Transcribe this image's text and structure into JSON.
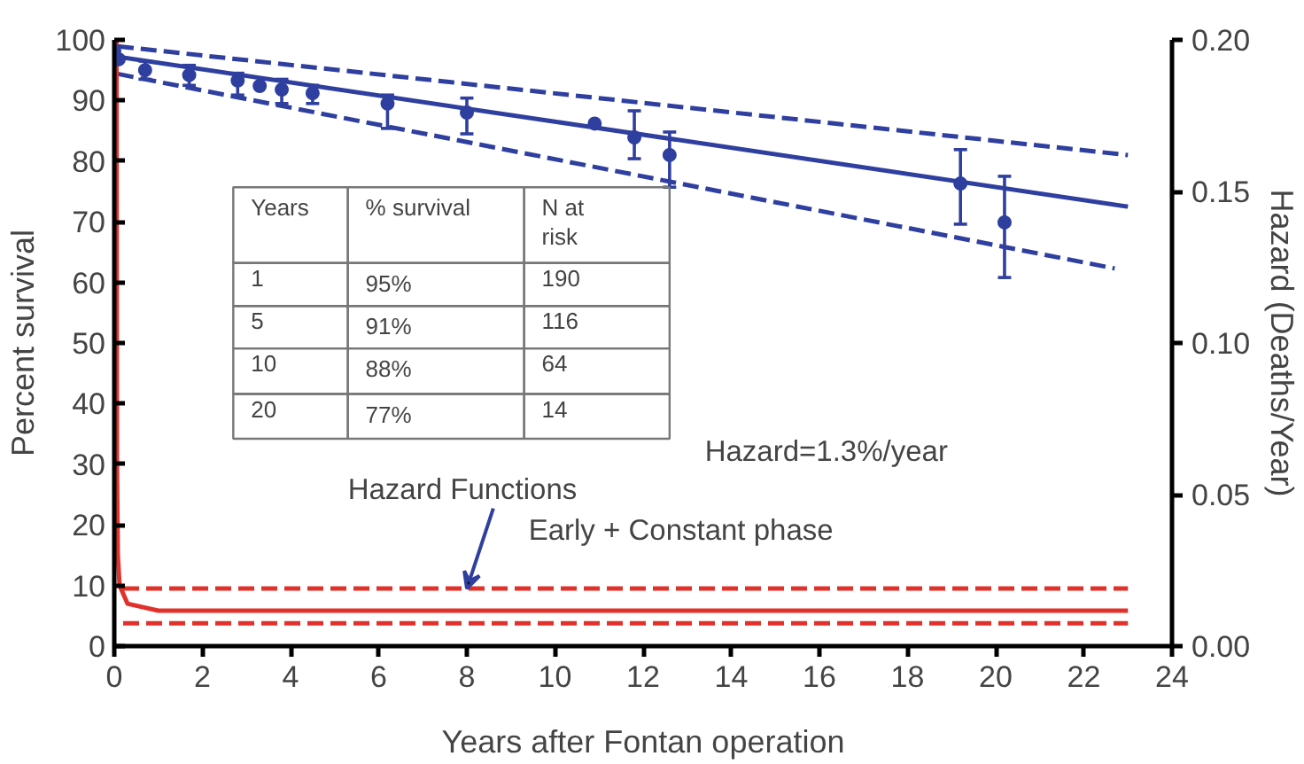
{
  "chart_data": {
    "type": "scatter",
    "xlabel": "Years after Fontan operation",
    "ylabel": "Percent survival",
    "y2label": "Hazard (Deaths/Year)",
    "xlim": [
      0,
      24
    ],
    "xticks": [
      0,
      2,
      4,
      6,
      8,
      10,
      12,
      14,
      16,
      18,
      20,
      22,
      24
    ],
    "ylim": [
      0,
      100
    ],
    "yticks": [
      0,
      10,
      20,
      30,
      40,
      50,
      60,
      70,
      80,
      90,
      100
    ],
    "y2lim": [
      0,
      0.2
    ],
    "y2ticks": [
      {
        "value": 0,
        "label": "0.00"
      },
      {
        "value": 0.05,
        "label": "0.05"
      },
      {
        "value": 0.1,
        "label": "0.10"
      },
      {
        "value": 0.15,
        "label": "0.15"
      },
      {
        "value": 0.2,
        "label": "0.20"
      }
    ],
    "grid": false,
    "series": [
      {
        "color": "#2f3f9f",
        "marker": "circle",
        "x": [
          0,
          0.1,
          0.7,
          1.7,
          2.8,
          3.3,
          3.8,
          4.5,
          6.2,
          8.0,
          10.9,
          11.8,
          12.6,
          19.2,
          20.2
        ],
        "values": [
          98.2,
          96.8,
          95,
          94.2,
          93.3,
          92.4,
          91.8,
          91.2,
          89.5,
          88,
          86.2,
          83.9,
          81,
          76.3,
          69.9
        ],
        "errors": [
          null,
          null,
          [
            93.5,
            96.5
          ],
          [
            92.5,
            95.8
          ],
          [
            90.9,
            94.5
          ],
          null,
          [
            89.5,
            93.5
          ],
          [
            89.5,
            92.5
          ],
          [
            85.4,
            90.9
          ],
          [
            84.5,
            90.4
          ],
          null,
          [
            80.4,
            88.3
          ],
          [
            75.7,
            84.8
          ],
          [
            69.6,
            81.9
          ],
          [
            60.8,
            77.5
          ]
        ]
      },
      {
        "type": "line",
        "color": "#2f3f9f",
        "line_style": "solid",
        "x": [
          0,
          23
        ],
        "values": [
          97.3,
          72.5
        ]
      },
      {
        "type": "line",
        "color": "#2f3f9f",
        "line_style": "dashed",
        "x": [
          0,
          23
        ],
        "values": [
          99,
          81
        ]
      },
      {
        "type": "line",
        "color": "#2f3f9f",
        "line_style": "dashed",
        "x": [
          0,
          22.7
        ],
        "values": [
          94.5,
          62.3
        ]
      },
      {
        "type": "line",
        "color": "#e0312b",
        "line_style": "solid",
        "axis": "y2",
        "x": [
          0.05,
          0.06,
          0.08,
          0.12,
          0.3,
          1,
          23
        ],
        "values": [
          0.2,
          0.06,
          0.03,
          0.02,
          0.014,
          0.0117,
          0.0117
        ]
      },
      {
        "type": "line",
        "color": "#e0312b",
        "line_style": "dashed",
        "axis": "y2",
        "x": [
          0,
          23
        ],
        "values": [
          0.019,
          0.019
        ]
      },
      {
        "type": "line",
        "color": "#e0312b",
        "line_style": "dashed",
        "axis": "y2",
        "x": [
          0,
          23
        ],
        "values": [
          0.0075,
          0.0075
        ]
      }
    ],
    "annotations": [
      "Years",
      "% survival",
      "N at\nrisk",
      "1",
      "95%",
      "190",
      "5",
      "91%",
      "116",
      "10",
      "88%",
      "64",
      "20",
      "77%",
      "14",
      "Hazard=1.3%/year",
      {
        "text": "Hazard Functions",
        "x": 8.0,
        "y": 9.5
      },
      "Early + Constant phase"
    ]
  }
}
